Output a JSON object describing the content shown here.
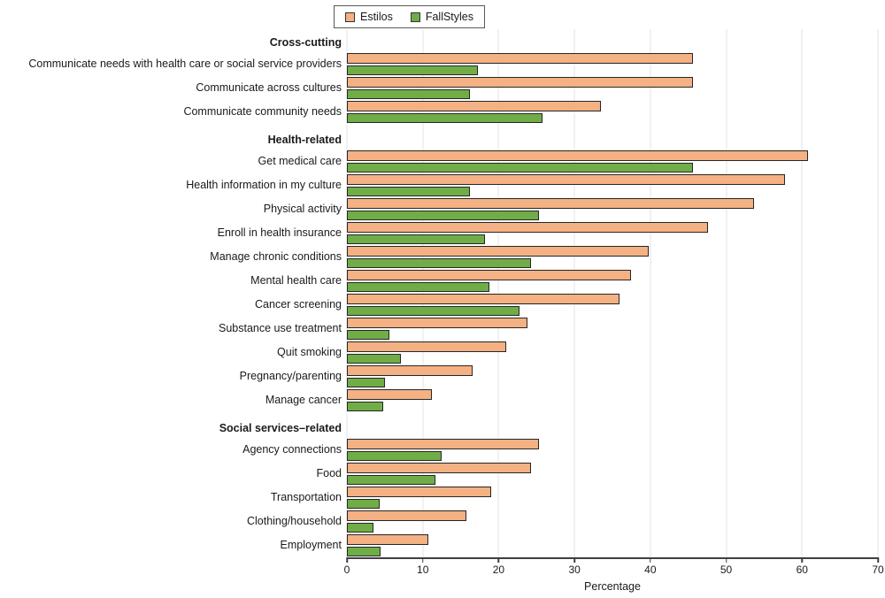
{
  "chart_data": {
    "type": "bar",
    "orientation": "horizontal",
    "xlabel": "Percentage",
    "xlim": [
      0,
      70
    ],
    "xticks": [
      0,
      10,
      20,
      30,
      40,
      50,
      60,
      70
    ],
    "grid": "vertical-light",
    "legend_position": "top-center",
    "series_names": [
      "Estilos",
      "FallStyles"
    ],
    "colors": {
      "estilos_fill": "#F4B183",
      "fallstyles_fill": "#70AD47",
      "bar_border": "#262626",
      "gridline": "#E3E3E3",
      "axis_line": "#3F3F3F"
    },
    "groups": [
      {
        "header": "Cross-cutting",
        "rows": [
          {
            "label": "Communicate needs with health care or social service providers",
            "estilos": 45,
            "fallstyles": 17
          },
          {
            "label": "Communicate across cultures",
            "estilos": 45,
            "fallstyles": 16
          },
          {
            "label": "Communicate community needs",
            "estilos": 33,
            "fallstyles": 25.5
          }
        ]
      },
      {
        "header": "Health-related",
        "rows": [
          {
            "label": "Get medical care",
            "estilos": 60,
            "fallstyles": 45
          },
          {
            "label": "Health information in my culture",
            "estilos": 57,
            "fallstyles": 16
          },
          {
            "label": "Physical activity",
            "estilos": 53,
            "fallstyles": 25
          },
          {
            "label": "Enroll in health insurance",
            "estilos": 47,
            "fallstyles": 18
          },
          {
            "label": "Manage chronic conditions",
            "estilos": 39.3,
            "fallstyles": 24
          },
          {
            "label": "Mental health care",
            "estilos": 37,
            "fallstyles": 18.5
          },
          {
            "label": "Cancer screening",
            "estilos": 35.5,
            "fallstyles": 22.5
          },
          {
            "label": "Substance use treatment",
            "estilos": 23.5,
            "fallstyles": 5.5
          },
          {
            "label": "Quit smoking",
            "estilos": 20.7,
            "fallstyles": 7
          },
          {
            "label": "Pregnancy/parenting",
            "estilos": 16.3,
            "fallstyles": 5
          },
          {
            "label": "Manage cancer",
            "estilos": 11,
            "fallstyles": 4.7
          }
        ]
      },
      {
        "header": "Social services–related",
        "rows": [
          {
            "label": "Agency connections",
            "estilos": 25,
            "fallstyles": 12.3
          },
          {
            "label": "Food",
            "estilos": 24,
            "fallstyles": 11.5
          },
          {
            "label": "Transportation",
            "estilos": 18.8,
            "fallstyles": 4.3
          },
          {
            "label": "Clothing/household",
            "estilos": 15.5,
            "fallstyles": 3.5
          },
          {
            "label": "Employment",
            "estilos": 10.6,
            "fallstyles": 4.4
          }
        ]
      }
    ]
  },
  "legend": {
    "estilos_label": "Estilos",
    "fallstyles_label": "FallStyles"
  },
  "axis": {
    "x_title": "Percentage"
  }
}
